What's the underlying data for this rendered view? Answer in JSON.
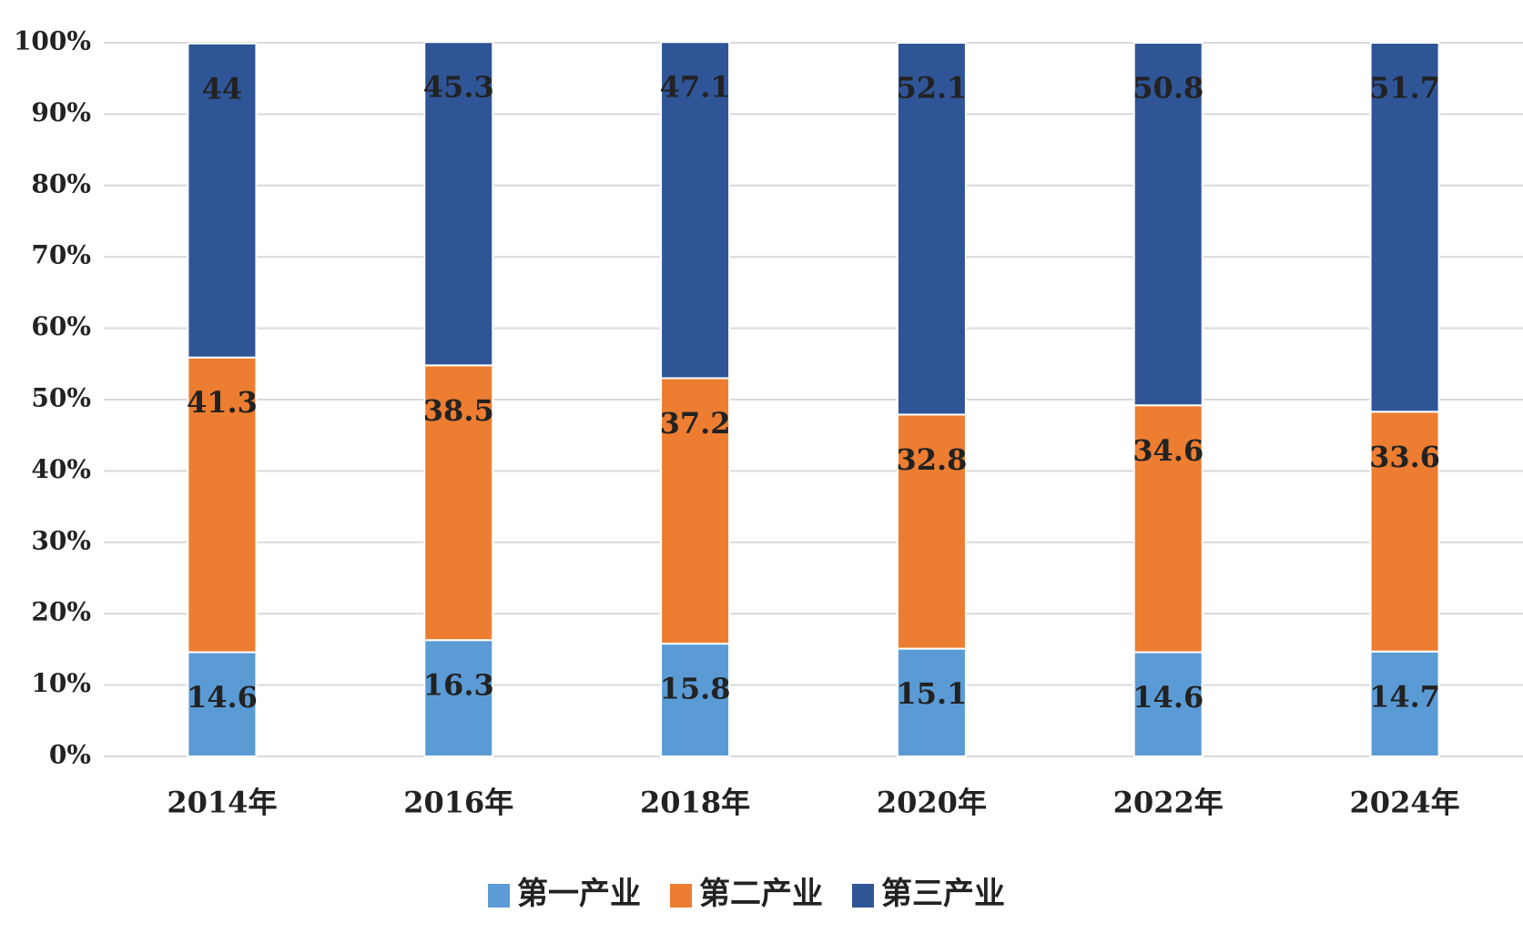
{
  "chart_data": {
    "type": "stacked_bar",
    "categories": [
      "2014年",
      "2016年",
      "2018年",
      "2020年",
      "2022年",
      "2024年"
    ],
    "series": [
      {
        "name": "第一产业",
        "color": "#5b9bd5",
        "values": [
          14.6,
          16.3,
          15.8,
          15.1,
          14.6,
          14.7
        ]
      },
      {
        "name": "第二产业",
        "color": "#ed7d31",
        "values": [
          41.3,
          38.5,
          37.2,
          32.8,
          34.6,
          33.6
        ]
      },
      {
        "name": "第三产业",
        "color": "#2f5597",
        "values": [
          44.0,
          45.3,
          47.1,
          52.1,
          50.8,
          51.7
        ]
      }
    ],
    "ylim": [
      0,
      100
    ],
    "yticks": [
      {
        "value": 0,
        "label": "0%"
      },
      {
        "value": 10,
        "label": "10%"
      },
      {
        "value": 20,
        "label": "20%"
      },
      {
        "value": 30,
        "label": "30%"
      },
      {
        "value": 40,
        "label": "40%"
      },
      {
        "value": 50,
        "label": "50%"
      },
      {
        "value": 60,
        "label": "60%"
      },
      {
        "value": 70,
        "label": "70%"
      },
      {
        "value": 80,
        "label": "80%"
      },
      {
        "value": 90,
        "label": "90%"
      },
      {
        "value": 100,
        "label": "100%"
      }
    ],
    "grid": true,
    "legend": "bottom"
  }
}
